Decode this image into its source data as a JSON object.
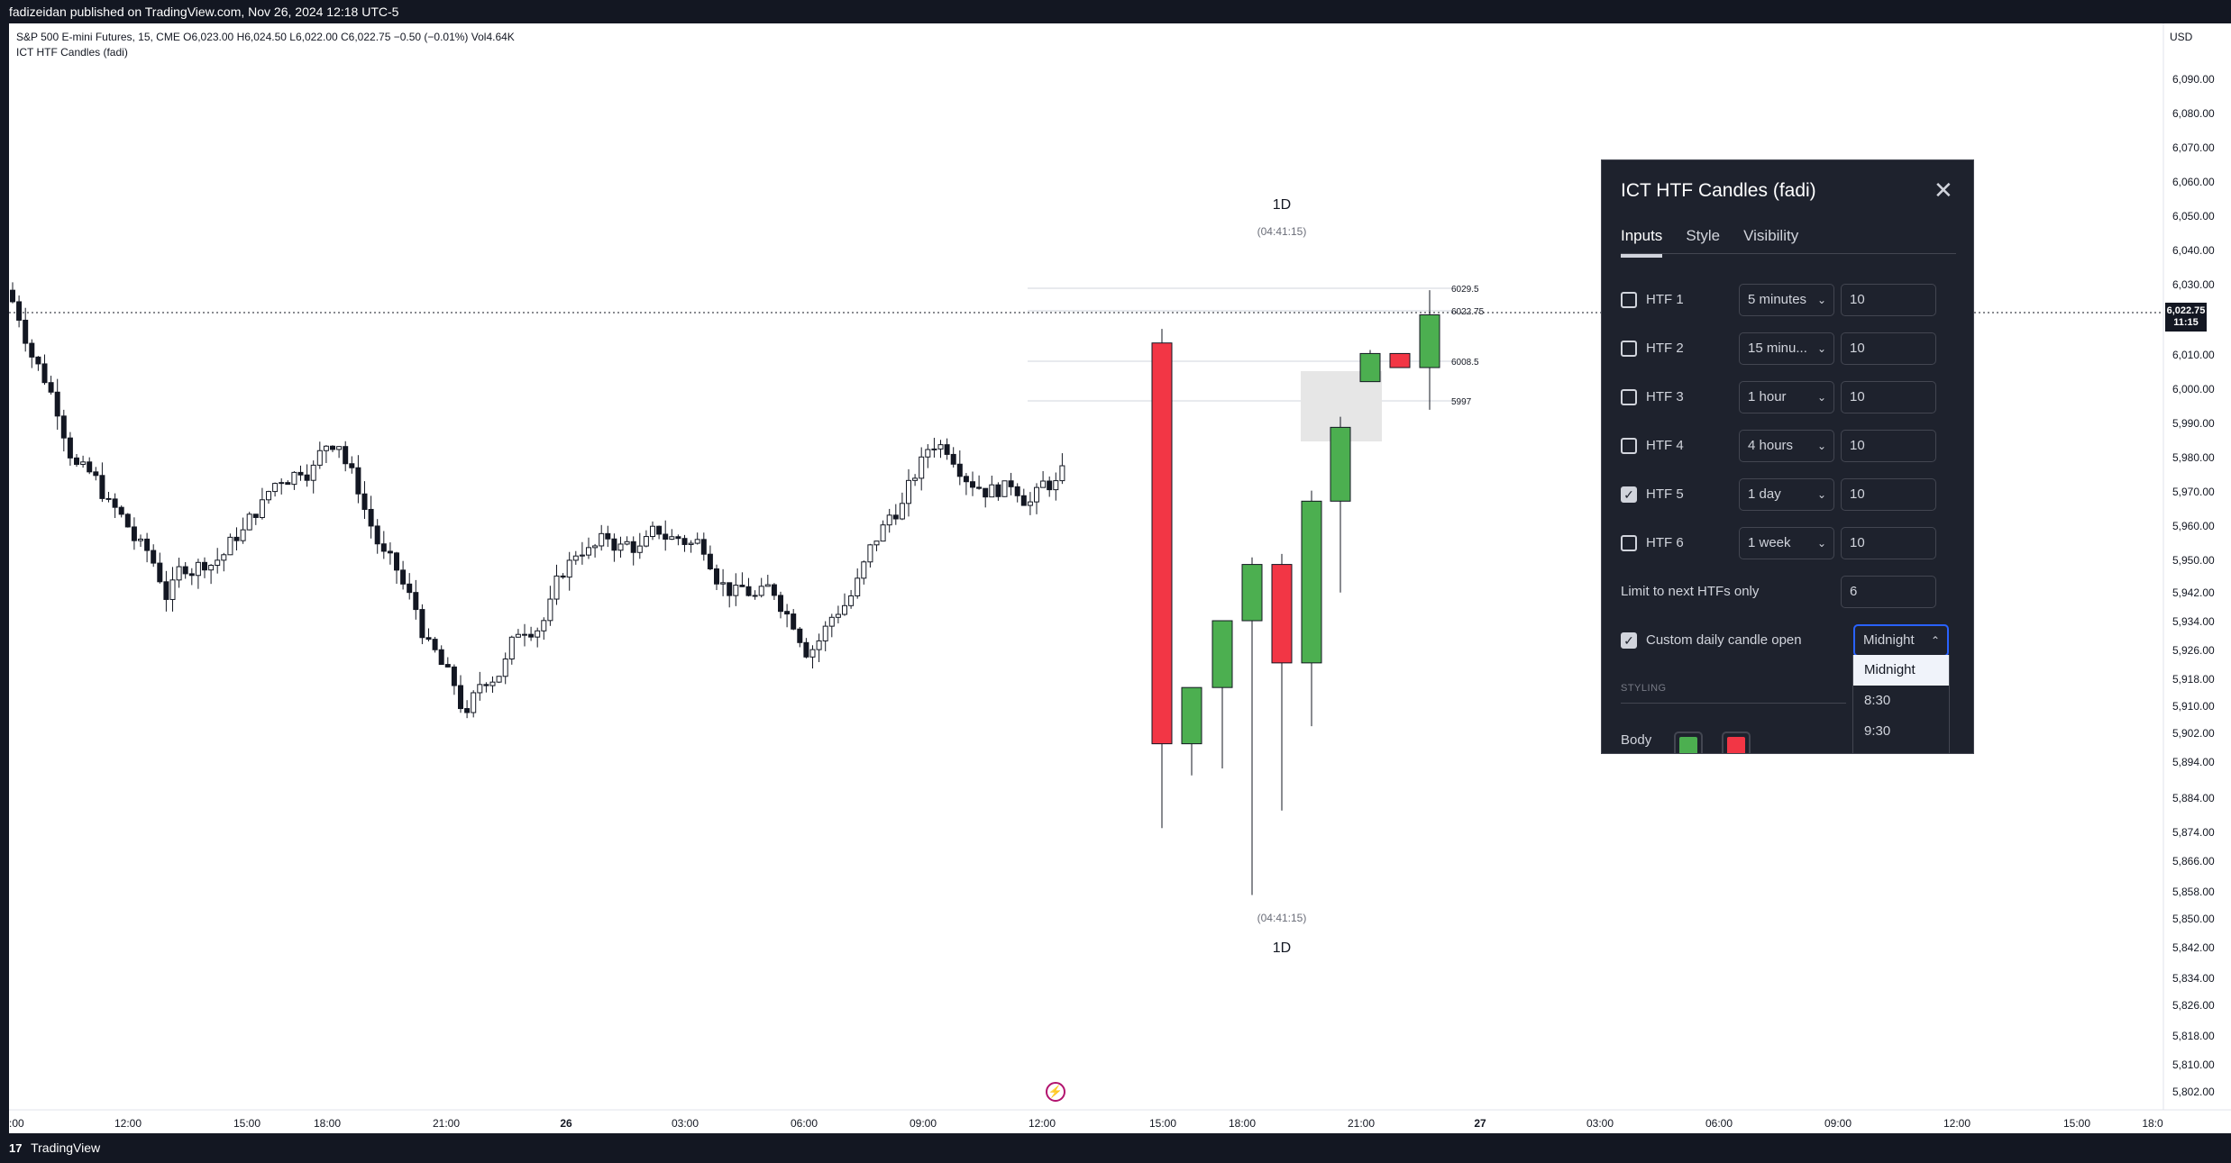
{
  "header": {
    "publisher_text": "fadizeidan published on TradingView.com, Nov 26, 2024 12:18 UTC-5"
  },
  "legend": {
    "symbol_line": "S&P 500 E-mini Futures, 15, CME  O6,023.00  H6,024.50  L6,022.00  C6,022.75  −0.50 (−0.01%)  Vol4.64K",
    "indicator": "ICT HTF Candles (fadi)"
  },
  "price_axis": {
    "currency": "USD",
    "labels": [
      "6,090.00",
      "6,080.00",
      "6,070.00",
      "6,060.00",
      "6,050.00",
      "6,040.00",
      "6,030.00",
      "6,010.00",
      "6,000.00",
      "5,990.00",
      "5,980.00",
      "5,970.00",
      "5,960.00",
      "5,950.00",
      "5,942.00",
      "5,934.00",
      "5,926.00",
      "5,918.00",
      "5,910.00",
      "5,902.00",
      "5,894.00",
      "5,884.00",
      "5,874.00",
      "5,866.00",
      "5,858.00",
      "5,850.00",
      "5,842.00",
      "5,834.00",
      "5,826.00",
      "5,818.00",
      "5,810.00",
      "5,802.00"
    ],
    "last_price": "6,022.75",
    "countdown": "11:15"
  },
  "time_axis": {
    "labels": [
      ":00",
      "12:00",
      "15:00",
      "18:00",
      "21:00",
      "26",
      "03:00",
      "06:00",
      "09:00",
      "12:00",
      "15:00",
      "18:00",
      "21:00",
      "27",
      "03:00",
      "06:00",
      "09:00",
      "12:00",
      "15:00",
      "18:0"
    ]
  },
  "htf_overlay": {
    "label_top": "1D",
    "timer_top": "(04:41:15)",
    "label_bottom": "1D",
    "timer_bottom": "(04:41:15)",
    "levels": [
      "6029.5",
      "6022.75",
      "6008.5",
      "5997"
    ]
  },
  "dialog": {
    "title": "ICT HTF Candles (fadi)",
    "tabs": [
      {
        "label": "Inputs"
      },
      {
        "label": "Style"
      },
      {
        "label": "Visibility"
      }
    ],
    "rows": [
      {
        "label": "HTF 1",
        "timeframe": "5 minutes",
        "count": "10",
        "checked": false
      },
      {
        "label": "HTF 2",
        "timeframe": "15 minu...",
        "count": "10",
        "checked": false
      },
      {
        "label": "HTF 3",
        "timeframe": "1 hour",
        "count": "10",
        "checked": false
      },
      {
        "label": "HTF 4",
        "timeframe": "4 hours",
        "count": "10",
        "checked": false
      },
      {
        "label": "HTF 5",
        "timeframe": "1 day",
        "count": "10",
        "checked": true
      },
      {
        "label": "HTF 6",
        "timeframe": "1 week",
        "count": "10",
        "checked": false
      }
    ],
    "limit_label": "Limit to next HTFs only",
    "limit_value": "6",
    "custom_label": "Custom daily candle open",
    "custom_value": "Midnight",
    "dropdown_options": [
      "Midnight",
      "8:30",
      "9:30"
    ],
    "section_styling": "STYLING",
    "body_label": "Body",
    "colors": {
      "bull": "#4caf50",
      "bear": "#f23645"
    }
  },
  "footer": {
    "brand": "TradingView"
  },
  "chart_data": {
    "type": "candlestick",
    "title": "S&P 500 E-mini Futures, 15, CME",
    "ylim": [
      5802,
      6090
    ],
    "htf_daily_candles": [
      {
        "o": 6015,
        "h": 6019,
        "l": 5877,
        "c": 5901
      },
      {
        "o": 5901,
        "h": 5916,
        "l": 5892,
        "c": 5917
      },
      {
        "o": 5917,
        "h": 5933,
        "l": 5894,
        "c": 5936
      },
      {
        "o": 5936,
        "h": 5954,
        "l": 5858,
        "c": 5952
      },
      {
        "o": 5952,
        "h": 5955,
        "l": 5882,
        "c": 5924
      },
      {
        "o": 5924,
        "h": 5973,
        "l": 5906,
        "c": 5970
      },
      {
        "o": 5970,
        "h": 5994,
        "l": 5944,
        "c": 5991
      },
      {
        "o": 6004,
        "h": 6013,
        "l": 6004,
        "c": 6012
      },
      {
        "o": 6012,
        "h": 6012,
        "l": 6008,
        "c": 6008
      },
      {
        "o": 6008,
        "h": 6030,
        "l": 5996,
        "c": 6023
      }
    ]
  }
}
